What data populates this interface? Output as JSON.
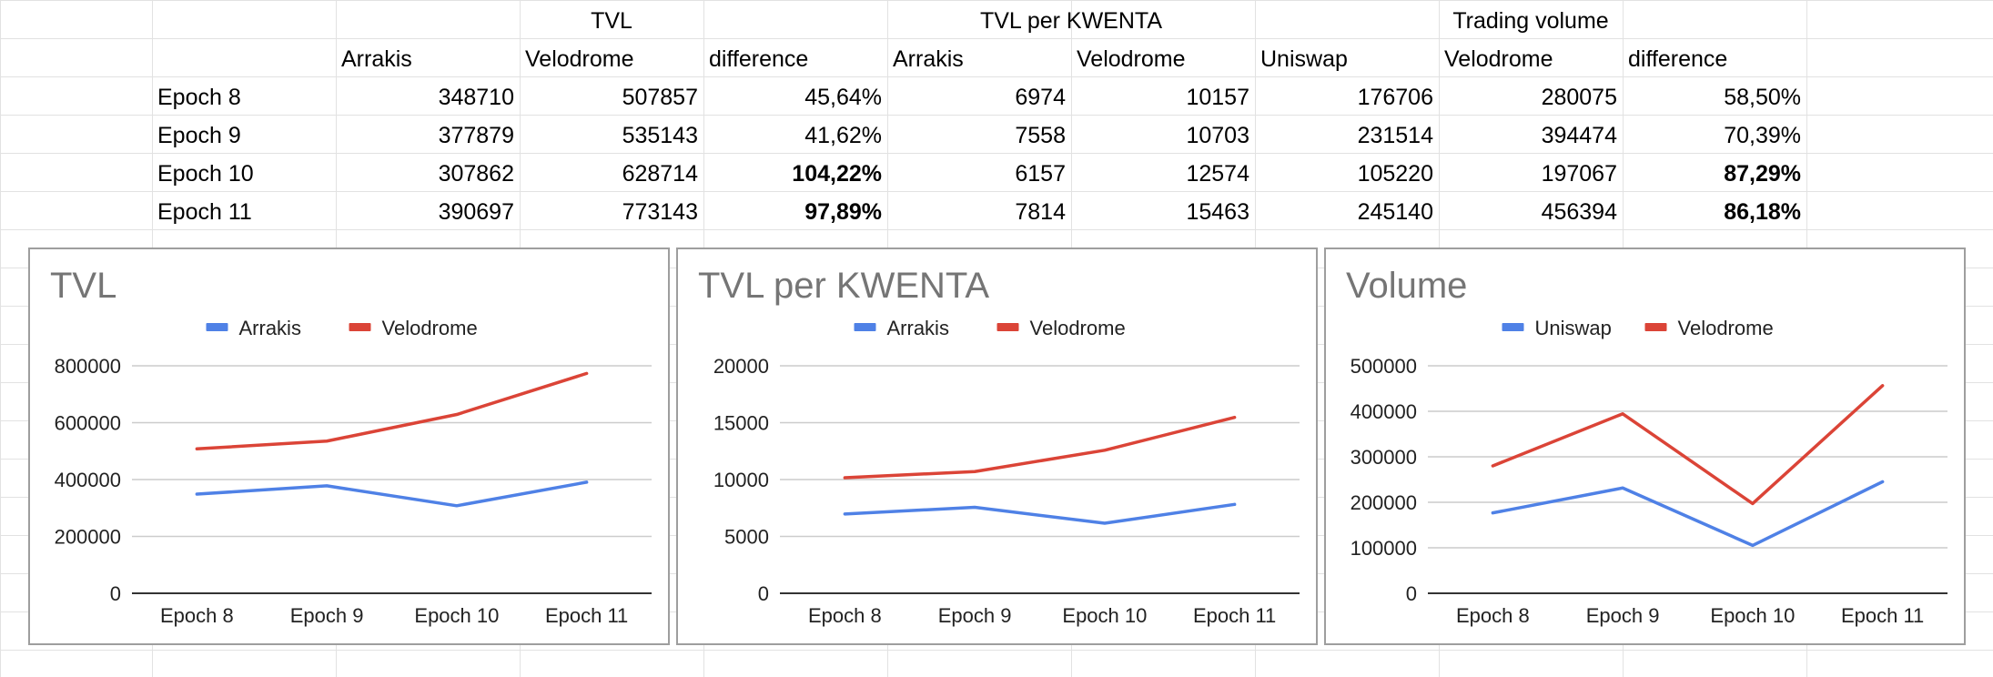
{
  "sheet": {
    "group_headers": [
      "TVL",
      "TVL per KWENTA",
      "Trading volume"
    ],
    "column_headers": [
      "Arrakis",
      "Velodrome",
      "difference",
      "Arrakis",
      "Velodrome",
      "Uniswap",
      "Velodrome",
      "difference"
    ],
    "rows": [
      {
        "label": "Epoch 8",
        "cells": [
          "348710",
          "507857",
          "45,64%",
          "6974",
          "10157",
          "176706",
          "280075",
          "58,50%"
        ],
        "bold": [
          false,
          false,
          false,
          false,
          false,
          false,
          false,
          false
        ]
      },
      {
        "label": "Epoch 9",
        "cells": [
          "377879",
          "535143",
          "41,62%",
          "7558",
          "10703",
          "231514",
          "394474",
          "70,39%"
        ],
        "bold": [
          false,
          false,
          false,
          false,
          false,
          false,
          false,
          false
        ]
      },
      {
        "label": "Epoch 10",
        "cells": [
          "307862",
          "628714",
          "104,22%",
          "6157",
          "12574",
          "105220",
          "197067",
          "87,29%"
        ],
        "bold": [
          false,
          false,
          true,
          false,
          false,
          false,
          false,
          true
        ]
      },
      {
        "label": "Epoch 11",
        "cells": [
          "390697",
          "773143",
          "97,89%",
          "7814",
          "15463",
          "245140",
          "456394",
          "86,18%"
        ],
        "bold": [
          false,
          false,
          true,
          false,
          false,
          false,
          false,
          true
        ]
      }
    ]
  },
  "colors": {
    "series_blue": "#4f81e6",
    "series_red": "#db4437",
    "gridline": "#cccccc",
    "sheet_gridline": "#e2e2e2",
    "axis": "#333333",
    "title": "#757575"
  },
  "chart_data": [
    {
      "type": "line",
      "title": "TVL",
      "legend_position": "top",
      "categories": [
        "Epoch 8",
        "Epoch 9",
        "Epoch 10",
        "Epoch 11"
      ],
      "series": [
        {
          "name": "Arrakis",
          "values": [
            348710,
            377879,
            307862,
            390697
          ],
          "color": "#4f81e6"
        },
        {
          "name": "Velodrome",
          "values": [
            507857,
            535143,
            628714,
            773143
          ],
          "color": "#db4437"
        }
      ],
      "ylim": [
        0,
        800000
      ],
      "yticks": [
        0,
        200000,
        400000,
        600000,
        800000
      ],
      "grid": true
    },
    {
      "type": "line",
      "title": "TVL per KWENTA",
      "legend_position": "top",
      "categories": [
        "Epoch 8",
        "Epoch 9",
        "Epoch 10",
        "Epoch 11"
      ],
      "series": [
        {
          "name": "Arrakis",
          "values": [
            6974,
            7558,
            6157,
            7814
          ],
          "color": "#4f81e6"
        },
        {
          "name": "Velodrome",
          "values": [
            10157,
            10703,
            12574,
            15463
          ],
          "color": "#db4437"
        }
      ],
      "ylim": [
        0,
        20000
      ],
      "yticks": [
        0,
        5000,
        10000,
        15000,
        20000
      ],
      "grid": true
    },
    {
      "type": "line",
      "title": "Volume",
      "legend_position": "top",
      "categories": [
        "Epoch 8",
        "Epoch 9",
        "Epoch 10",
        "Epoch 11"
      ],
      "series": [
        {
          "name": "Uniswap",
          "values": [
            176706,
            231514,
            105220,
            245140
          ],
          "color": "#4f81e6"
        },
        {
          "name": "Velodrome",
          "values": [
            280075,
            394474,
            197067,
            456394
          ],
          "color": "#db4437"
        }
      ],
      "ylim": [
        0,
        500000
      ],
      "yticks": [
        0,
        100000,
        200000,
        300000,
        400000,
        500000
      ],
      "grid": true
    }
  ]
}
